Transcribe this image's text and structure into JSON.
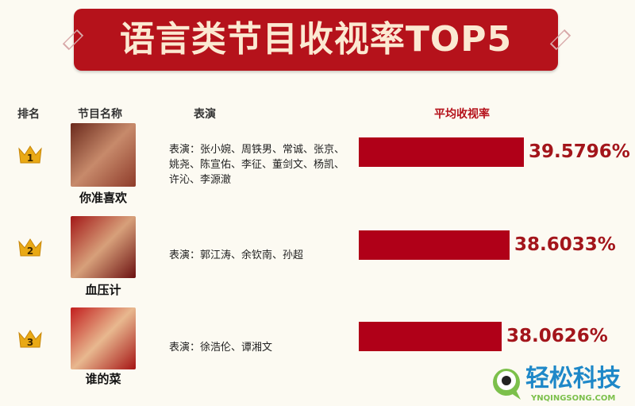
{
  "header": {
    "title": "语言类节目收视率TOP5"
  },
  "columns": {
    "rank": "排名",
    "program": "节目名称",
    "performers": "表演",
    "rating": "平均收视率"
  },
  "chart_data": {
    "type": "bar",
    "orientation": "horizontal",
    "title": "语言类节目收视率TOP5",
    "categories": [
      "你准喜欢",
      "血压计",
      "谁的菜"
    ],
    "values": [
      39.5796,
      38.6033,
      38.0626
    ],
    "labels": [
      "39.5796%",
      "38.6033%",
      "38.0626%"
    ],
    "bar_color": "#b00018"
  },
  "rows": [
    {
      "rank": "1",
      "program": "你准喜欢",
      "performers": "表演：张小婉、周铁男、常诚、张京、姚尧、陈宣佑、李征、董剑文、杨凯、许沁、李源澈",
      "rating": "39.5796%"
    },
    {
      "rank": "2",
      "program": "血压计",
      "performers": "表演：郭江涛、余钦南、孙超",
      "rating": "38.6033%"
    },
    {
      "rank": "3",
      "program": "谁的菜",
      "performers": "表演：徐浩伦、谭湘文",
      "rating": "38.0626%"
    }
  ],
  "watermark": {
    "name": "轻松科技",
    "url": "YNQINGSONG.COM",
    "color": "#1e88c8",
    "icon_color": "#7cc04b"
  }
}
